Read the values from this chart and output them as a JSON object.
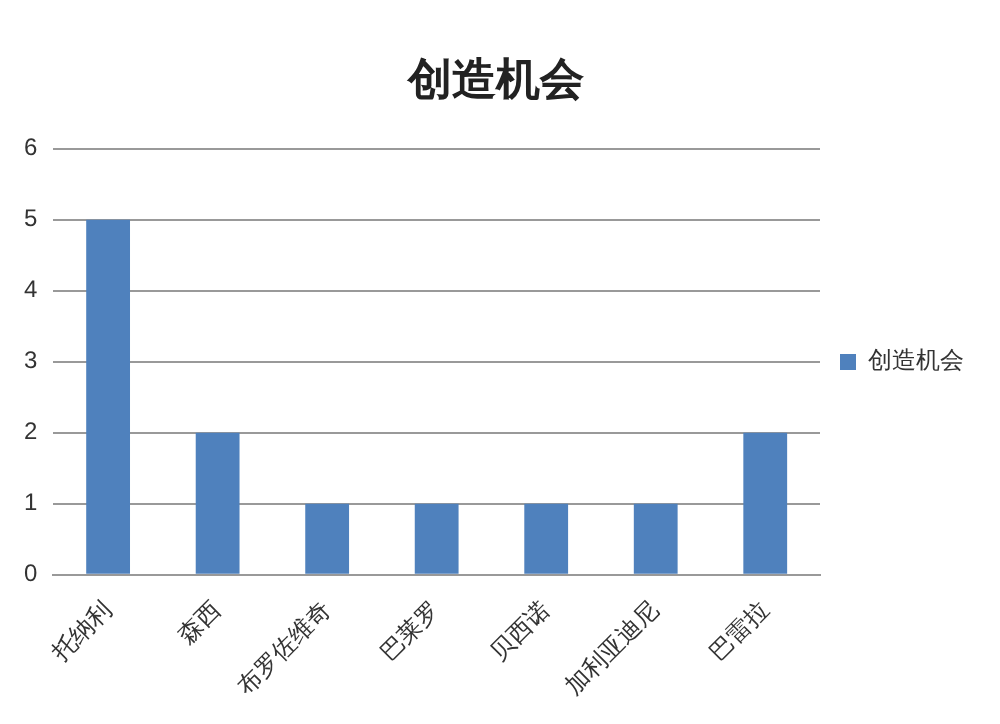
{
  "chart_data": {
    "type": "bar",
    "title": "创造机会",
    "categories": [
      "托纳利",
      "森西",
      "布罗佐维奇",
      "巴莱罗",
      "贝西诺",
      "加利亚迪尼",
      "巴雷拉"
    ],
    "series": [
      {
        "name": "创造机会",
        "color": "#4f81bd",
        "values": [
          5,
          2,
          1,
          1,
          1,
          1,
          2
        ]
      }
    ],
    "ylim": [
      0,
      6
    ],
    "yticks": [
      0,
      1,
      2,
      3,
      4,
      5,
      6
    ],
    "grid": "y",
    "legend": "right"
  }
}
